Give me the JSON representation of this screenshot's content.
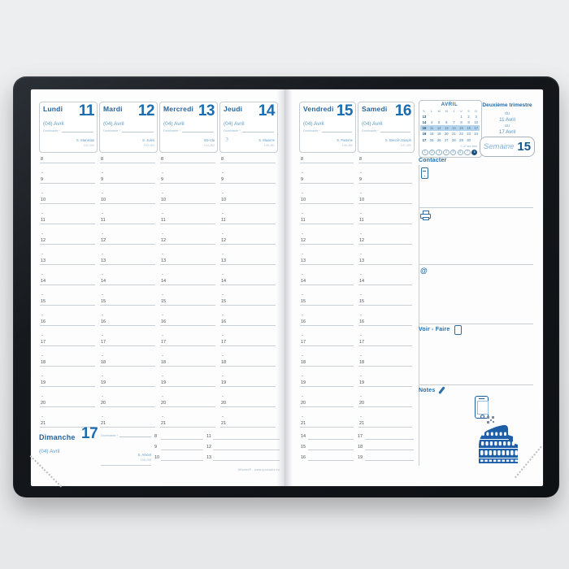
{
  "week_header": {
    "trimester": "Deuxième trimestre",
    "du": "du",
    "from_date": "11 Avril",
    "au": "au",
    "to_date": "17 Avril",
    "week_label": "Semaine",
    "week_number": "15"
  },
  "days": [
    {
      "name": "Lundi",
      "num": "11",
      "month": "(04) Avril",
      "dominante": "Dominante *",
      "saint": "S. Stanislas",
      "count": "102-264"
    },
    {
      "name": "Mardi",
      "num": "12",
      "month": "(04) Avril",
      "dominante": "Dominante *",
      "saint": "S. Jules",
      "count": "103-263"
    },
    {
      "name": "Mercredi",
      "num": "13",
      "month": "(04) Avril",
      "dominante": "Dominante *",
      "saint": "Ste Ida",
      "count": "104-262"
    },
    {
      "name": "Jeudi",
      "num": "14",
      "month": "(04) Avril",
      "dominante": "Dominante *",
      "saint": "S. Maxime",
      "count": "105-261",
      "moon": "☽"
    },
    {
      "name": "Vendredi",
      "num": "15",
      "month": "(04) Avril",
      "dominante": "Dominante *",
      "saint": "S. Paterne",
      "count": "106-260"
    },
    {
      "name": "Samedi",
      "num": "16",
      "month": "(04) Avril",
      "dominante": "Dominante *",
      "saint": "S. Benoît-Joseph",
      "count": "107-259"
    },
    {
      "name": "Dimanche",
      "num": "17",
      "month": "(04) Avril",
      "dominante": "Dominante *",
      "saint": "S. Anicet",
      "count": "108-258"
    }
  ],
  "hours": [
    "8",
    "9",
    "10",
    "11",
    "12",
    "13",
    "14",
    "15",
    "16",
    "17",
    "18",
    "19",
    "20",
    "21"
  ],
  "sunday_hours": {
    "left_page": [
      [
        "8",
        "9",
        "10"
      ],
      [
        "11",
        "12",
        "13"
      ]
    ],
    "right_page": [
      [
        "14",
        "15",
        "16"
      ],
      [
        "17",
        "18",
        "19"
      ]
    ]
  },
  "mini_calendar": {
    "title": "AVRIL",
    "dow": [
      "S.",
      "L",
      "M",
      "M",
      "J",
      "V",
      "S",
      "D"
    ],
    "weeks": [
      {
        "num": "13",
        "days": [
          "",
          "",
          "",
          "",
          "1",
          "2",
          "3"
        ],
        "highlight": false
      },
      {
        "num": "14",
        "days": [
          "4",
          "5",
          "6",
          "7",
          "8",
          "9",
          "10"
        ],
        "highlight": false
      },
      {
        "num": "15",
        "days": [
          "11",
          "12",
          "13",
          "14",
          "15",
          "16",
          "17"
        ],
        "highlight": true
      },
      {
        "num": "16",
        "days": [
          "18",
          "19",
          "20",
          "21",
          "22",
          "23",
          "24"
        ],
        "highlight": false
      },
      {
        "num": "17",
        "days": [
          "25",
          "26",
          "27",
          "28",
          "29",
          "30",
          ""
        ],
        "highlight": false
      }
    ],
    "footnote": "C-47 aux sem.",
    "week_circles": [
      "1",
      "2",
      "3",
      "4",
      "5",
      "6",
      "7"
    ],
    "week_circle_filled": "8"
  },
  "sidebar": {
    "contacter_label": "Contacter",
    "voir_faire_label": "Voir - Faire",
    "notes_label": "Notes",
    "at_symbol": "@"
  },
  "footer": {
    "brand": "Affaires® - www.quovadis.eu"
  },
  "colors": {
    "accent": "#1a6cb0",
    "light_blue": "#5b9bc9",
    "illustration_blue": "#1d5ea8"
  }
}
